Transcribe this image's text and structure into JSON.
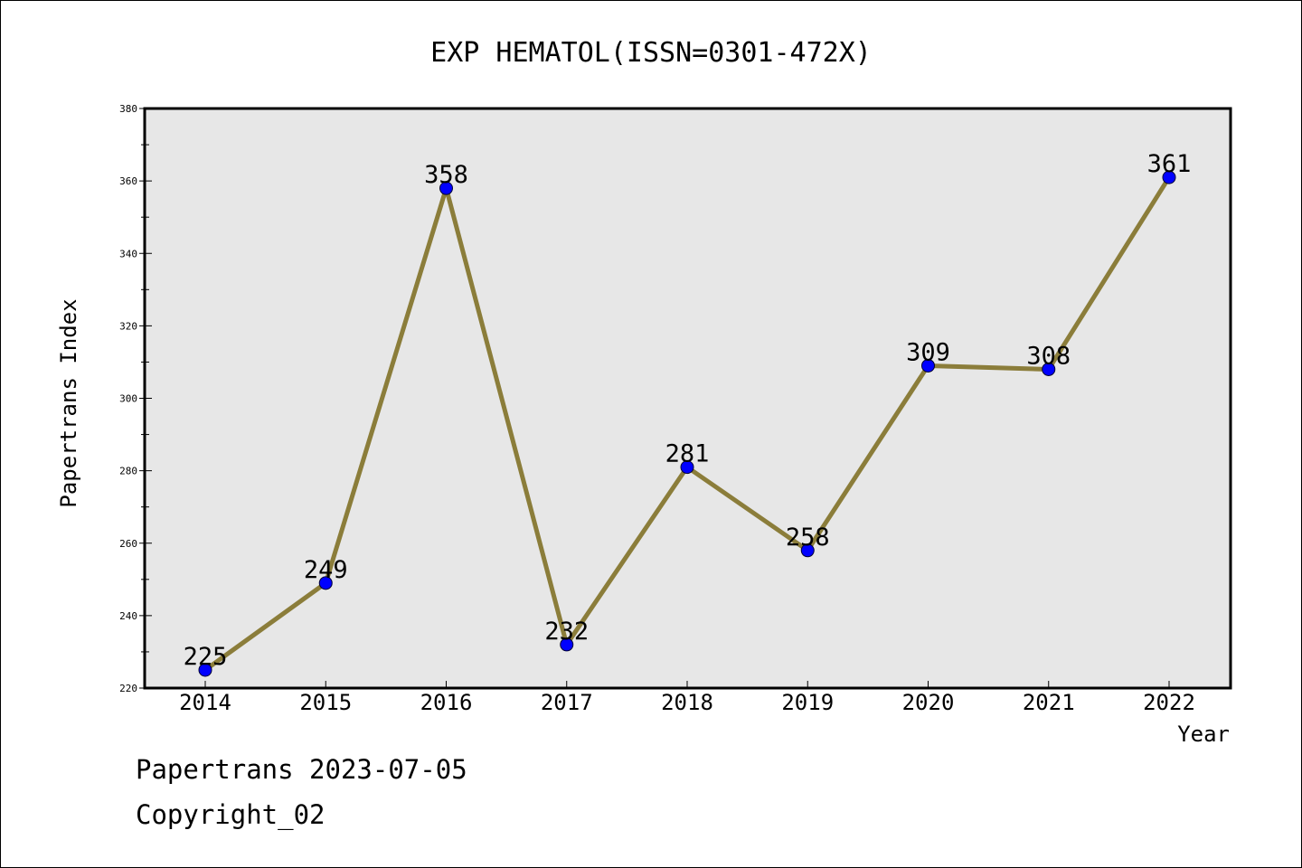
{
  "chart_data": {
    "type": "line",
    "title": "EXP HEMATOL(ISSN=0301-472X)",
    "xlabel": "Year",
    "ylabel": "Papertrans Index",
    "categories": [
      "2014",
      "2015",
      "2016",
      "2017",
      "2018",
      "2019",
      "2020",
      "2021",
      "2022"
    ],
    "series": [
      {
        "values": [
          225,
          249,
          358,
          232,
          281,
          258,
          309,
          308,
          361
        ]
      }
    ],
    "ylim": [
      220,
      380
    ],
    "yticks": [
      "220",
      "240",
      "260",
      "280",
      "300",
      "320",
      "340",
      "360",
      "380"
    ],
    "grid": false,
    "colors": {
      "line": "#8b7d3a",
      "marker": "#0000ff",
      "plot_background": "#e7e7e7"
    }
  },
  "footer": {
    "line1": "Papertrans 2023-07-05",
    "line2": "Copyright_02"
  }
}
